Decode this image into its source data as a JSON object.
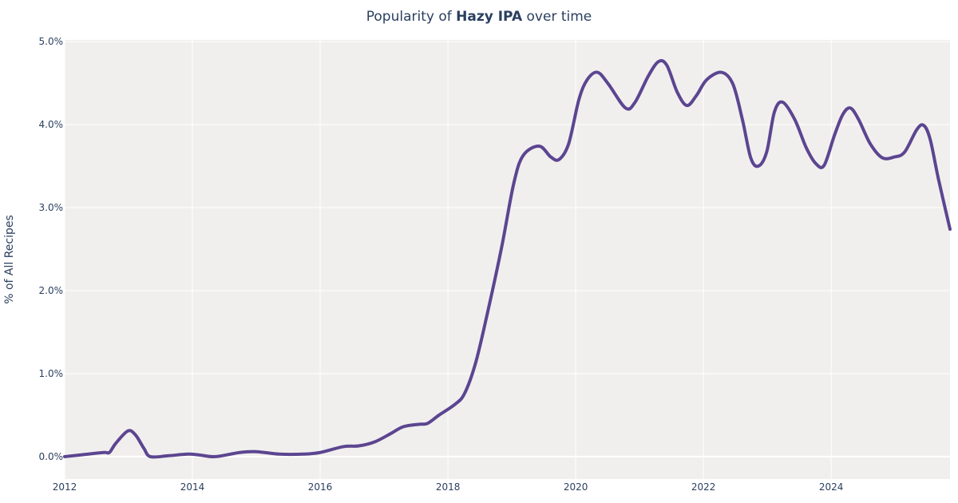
{
  "chart_data": {
    "type": "line",
    "title_prefix": "Popularity of ",
    "title_bold": "Hazy IPA",
    "title_suffix": " over time",
    "xlabel": "",
    "ylabel": "% of All Recipes",
    "xlim": [
      2012,
      2025.86
    ],
    "ylim": [
      -0.27,
      5.02
    ],
    "x_ticks": [
      "2012",
      "2014",
      "2016",
      "2018",
      "2020",
      "2022",
      "2024"
    ],
    "x_tick_values": [
      2012,
      2014,
      2016,
      2018,
      2020,
      2022,
      2024
    ],
    "y_ticks": [
      "0.0%",
      "1.0%",
      "2.0%",
      "3.0%",
      "4.0%",
      "5.0%"
    ],
    "y_tick_values": [
      0,
      1,
      2,
      3,
      4,
      5
    ],
    "grid": true,
    "colors": {
      "line": "#5c4590",
      "plot_bg": "#f0efee",
      "grid": "#ffffff",
      "text": "#2a3f5f"
    },
    "series": [
      {
        "x": [
          2012.0,
          2012.24,
          2012.61,
          2012.7,
          2012.8,
          2012.99,
          2013.11,
          2013.24,
          2013.34,
          2013.61,
          2013.93,
          2014.11,
          2014.36,
          2014.74,
          2015.0,
          2015.36,
          2015.74,
          2016.0,
          2016.36,
          2016.61,
          2016.86,
          2017.11,
          2017.3,
          2017.55,
          2017.68,
          2017.86,
          2018.11,
          2018.26,
          2018.43,
          2018.61,
          2018.84,
          2019.03,
          2019.18,
          2019.43,
          2019.61,
          2019.74,
          2019.89,
          2020.05,
          2020.18,
          2020.34,
          2020.51,
          2020.78,
          2020.93,
          2021.14,
          2021.3,
          2021.43,
          2021.59,
          2021.74,
          2021.89,
          2022.05,
          2022.28,
          2022.46,
          2022.61,
          2022.74,
          2022.86,
          2022.99,
          2023.11,
          2023.24,
          2023.43,
          2023.61,
          2023.76,
          2023.89,
          2024.05,
          2024.18,
          2024.3,
          2024.43,
          2024.61,
          2024.8,
          2024.99,
          2025.15,
          2025.34,
          2025.45,
          2025.55,
          2025.68,
          2025.86
        ],
        "y": [
          0.0,
          0.02,
          0.05,
          0.05,
          0.16,
          0.31,
          0.26,
          0.1,
          0.0,
          0.01,
          0.03,
          0.02,
          0.0,
          0.05,
          0.06,
          0.03,
          0.03,
          0.05,
          0.12,
          0.13,
          0.18,
          0.28,
          0.36,
          0.39,
          0.4,
          0.5,
          0.63,
          0.76,
          1.12,
          1.7,
          2.52,
          3.29,
          3.63,
          3.74,
          3.61,
          3.58,
          3.77,
          4.3,
          4.54,
          4.63,
          4.49,
          4.2,
          4.27,
          4.59,
          4.76,
          4.71,
          4.39,
          4.23,
          4.35,
          4.54,
          4.63,
          4.49,
          4.06,
          3.6,
          3.5,
          3.67,
          4.15,
          4.27,
          4.06,
          3.72,
          3.53,
          3.51,
          3.87,
          4.12,
          4.2,
          4.06,
          3.77,
          3.6,
          3.61,
          3.67,
          3.94,
          3.99,
          3.82,
          3.34,
          2.74
        ]
      }
    ]
  }
}
